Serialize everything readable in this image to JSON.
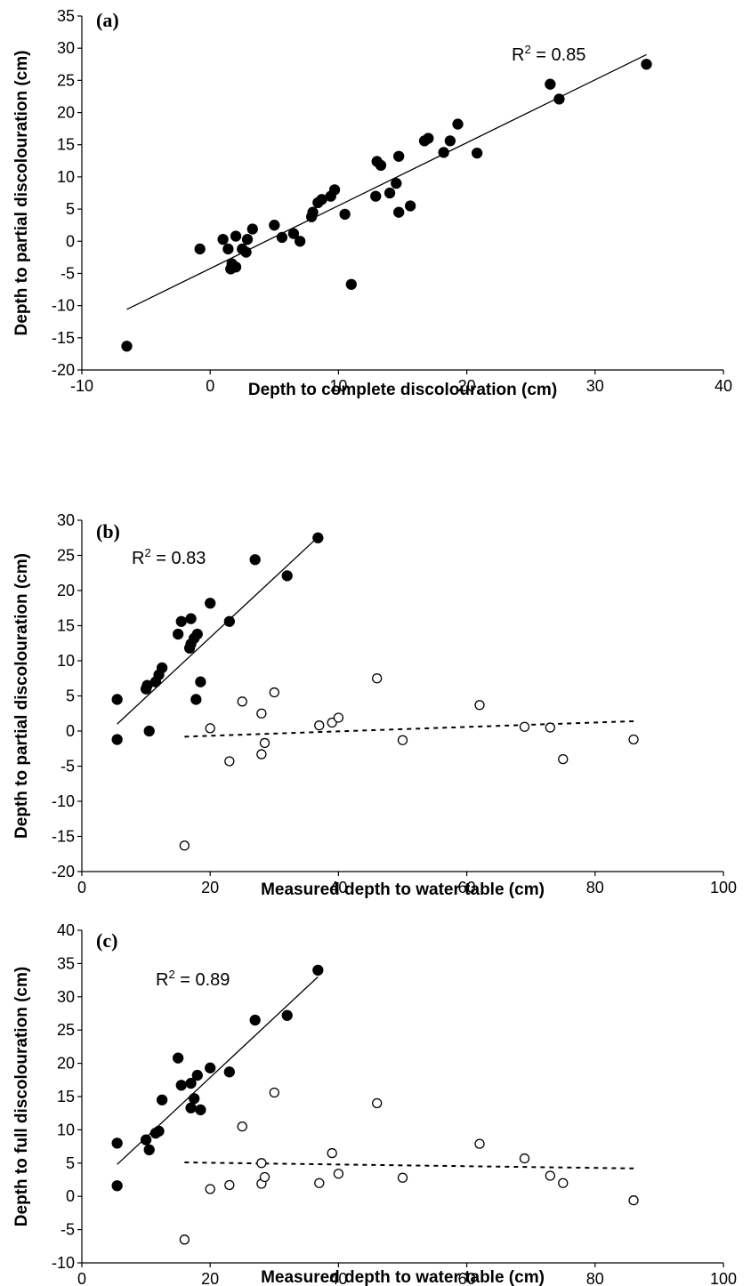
{
  "chart_data": [
    {
      "type": "scatter",
      "panel_label": "(a)",
      "xlabel": "Depth to complete discolouration (cm)",
      "ylabel": "Depth to partial discolouration (cm)",
      "xlim": [
        -10,
        40
      ],
      "ylim": [
        -20,
        35
      ],
      "xticks": [
        "-10",
        "0",
        "10",
        "20",
        "30",
        "40"
      ],
      "yticks": [
        "-20",
        "-15",
        "-10",
        "-5",
        "0",
        "5",
        "10",
        "15",
        "20",
        "25",
        "30",
        "35"
      ],
      "r2_label": "R",
      "r2_value": " = 0.85",
      "series": [
        {
          "marker": "filled",
          "points": [
            [
              -6.5,
              -16.3
            ],
            [
              -0.8,
              -1.2
            ],
            [
              1.0,
              0.3
            ],
            [
              1.4,
              -1.2
            ],
            [
              1.6,
              -4.3
            ],
            [
              1.7,
              -3.5
            ],
            [
              2.0,
              -4.0
            ],
            [
              2.0,
              0.8
            ],
            [
              2.5,
              -1.2
            ],
            [
              2.8,
              -1.7
            ],
            [
              2.9,
              0.3
            ],
            [
              3.3,
              1.9
            ],
            [
              5.0,
              2.5
            ],
            [
              5.6,
              0.6
            ],
            [
              6.5,
              1.2
            ],
            [
              7.0,
              0.0
            ],
            [
              7.9,
              3.8
            ],
            [
              8.0,
              4.5
            ],
            [
              8.4,
              6.0
            ],
            [
              8.7,
              6.5
            ],
            [
              9.4,
              7.0
            ],
            [
              9.7,
              8.0
            ],
            [
              10.5,
              4.2
            ],
            [
              11.0,
              -6.7
            ],
            [
              12.9,
              7.0
            ],
            [
              13.0,
              12.4
            ],
            [
              13.3,
              11.8
            ],
            [
              14.0,
              7.5
            ],
            [
              14.5,
              9.0
            ],
            [
              14.7,
              4.5
            ],
            [
              14.7,
              13.2
            ],
            [
              15.6,
              5.5
            ],
            [
              16.7,
              15.6
            ],
            [
              17.0,
              16.0
            ],
            [
              18.2,
              13.8
            ],
            [
              18.7,
              15.6
            ],
            [
              19.3,
              18.2
            ],
            [
              20.8,
              13.7
            ],
            [
              26.5,
              24.4
            ],
            [
              27.2,
              22.1
            ],
            [
              34.0,
              27.5
            ]
          ]
        }
      ],
      "fits": [
        {
          "style": "solid",
          "x": [
            -6.5,
            34.0
          ],
          "y": [
            -10.6,
            29.0
          ]
        }
      ]
    },
    {
      "type": "scatter",
      "panel_label": "(b)",
      "xlabel": "Measured depth to water table (cm)",
      "ylabel": "Depth to partial discolouration (cm)",
      "xlim": [
        0,
        100
      ],
      "ylim": [
        -20,
        30
      ],
      "xticks": [
        "0",
        "20",
        "40",
        "60",
        "80",
        "100"
      ],
      "yticks": [
        "-20",
        "-15",
        "-10",
        "-5",
        "0",
        "5",
        "10",
        "15",
        "20",
        "25",
        "30"
      ],
      "r2_label": "R",
      "r2_value": " = 0.83",
      "series": [
        {
          "marker": "filled",
          "points": [
            [
              5.5,
              4.5
            ],
            [
              5.5,
              -1.2
            ],
            [
              10.0,
              6.0
            ],
            [
              10.2,
              6.5
            ],
            [
              10.5,
              0.0
            ],
            [
              11.5,
              7.0
            ],
            [
              12.0,
              8.0
            ],
            [
              12.5,
              9.0
            ],
            [
              15.0,
              13.8
            ],
            [
              15.5,
              15.6
            ],
            [
              16.8,
              11.8
            ],
            [
              17.0,
              16.0
            ],
            [
              17.0,
              12.4
            ],
            [
              17.5,
              13.2
            ],
            [
              17.8,
              4.5
            ],
            [
              18.0,
              13.8
            ],
            [
              18.5,
              7.0
            ],
            [
              20.0,
              18.2
            ],
            [
              23.0,
              15.6
            ],
            [
              27.0,
              24.4
            ],
            [
              32.0,
              22.1
            ],
            [
              36.8,
              27.5
            ]
          ]
        },
        {
          "marker": "open",
          "points": [
            [
              16.0,
              -16.3
            ],
            [
              20.0,
              0.4
            ],
            [
              23.0,
              -4.3
            ],
            [
              25.0,
              4.2
            ],
            [
              28.0,
              2.5
            ],
            [
              28.0,
              -3.3
            ],
            [
              28.5,
              -1.7
            ],
            [
              30.0,
              5.5
            ],
            [
              37.0,
              0.8
            ],
            [
              39.0,
              1.2
            ],
            [
              40.0,
              1.9
            ],
            [
              46.0,
              7.5
            ],
            [
              50.0,
              -1.3
            ],
            [
              62.0,
              3.7
            ],
            [
              69.0,
              0.6
            ],
            [
              73.0,
              0.5
            ],
            [
              75.0,
              -4.0
            ],
            [
              86.0,
              -1.2
            ]
          ]
        }
      ],
      "fits": [
        {
          "style": "solid",
          "x": [
            5.5,
            36.8
          ],
          "y": [
            1.0,
            27.6
          ]
        },
        {
          "style": "dashed",
          "x": [
            16.0,
            86.0
          ],
          "y": [
            -0.8,
            1.4
          ]
        }
      ]
    },
    {
      "type": "scatter",
      "panel_label": "(c)",
      "xlabel": "Measured depth to water table (cm)",
      "ylabel": "Depth to full discolouration (cm)",
      "xlim": [
        0,
        100
      ],
      "ylim": [
        -10,
        40
      ],
      "xticks": [
        "0",
        "20",
        "40",
        "60",
        "80",
        "100"
      ],
      "yticks": [
        "-10",
        "-5",
        "0",
        "5",
        "10",
        "15",
        "20",
        "25",
        "30",
        "35",
        "40"
      ],
      "r2_label": "R",
      "r2_value": " = 0.89",
      "series": [
        {
          "marker": "filled",
          "points": [
            [
              5.5,
              8.0
            ],
            [
              5.5,
              1.6
            ],
            [
              10.0,
              8.5
            ],
            [
              10.5,
              7.0
            ],
            [
              11.5,
              9.5
            ],
            [
              12.0,
              9.8
            ],
            [
              12.5,
              14.5
            ],
            [
              15.0,
              20.8
            ],
            [
              15.5,
              16.7
            ],
            [
              17.0,
              17.0
            ],
            [
              17.0,
              13.3
            ],
            [
              17.5,
              14.7
            ],
            [
              18.0,
              18.2
            ],
            [
              18.5,
              13.0
            ],
            [
              20.0,
              19.3
            ],
            [
              23.0,
              18.7
            ],
            [
              27.0,
              26.5
            ],
            [
              32.0,
              27.2
            ],
            [
              36.8,
              34.0
            ]
          ]
        },
        {
          "marker": "open",
          "points": [
            [
              16.0,
              -6.5
            ],
            [
              20.0,
              1.1
            ],
            [
              23.0,
              1.7
            ],
            [
              25.0,
              10.5
            ],
            [
              28.0,
              1.9
            ],
            [
              28.0,
              5.0
            ],
            [
              28.5,
              2.9
            ],
            [
              30.0,
              15.6
            ],
            [
              37.0,
              2.0
            ],
            [
              39.0,
              6.5
            ],
            [
              40.0,
              3.4
            ],
            [
              46.0,
              14.0
            ],
            [
              50.0,
              2.8
            ],
            [
              62.0,
              7.9
            ],
            [
              69.0,
              5.7
            ],
            [
              73.0,
              3.1
            ],
            [
              75.0,
              2.0
            ],
            [
              86.0,
              -0.6
            ]
          ]
        }
      ],
      "fits": [
        {
          "style": "solid",
          "x": [
            5.5,
            36.8
          ],
          "y": [
            4.8,
            33.0
          ]
        },
        {
          "style": "dashed",
          "x": [
            16.0,
            86.0
          ],
          "y": [
            5.1,
            4.2
          ]
        }
      ]
    }
  ]
}
